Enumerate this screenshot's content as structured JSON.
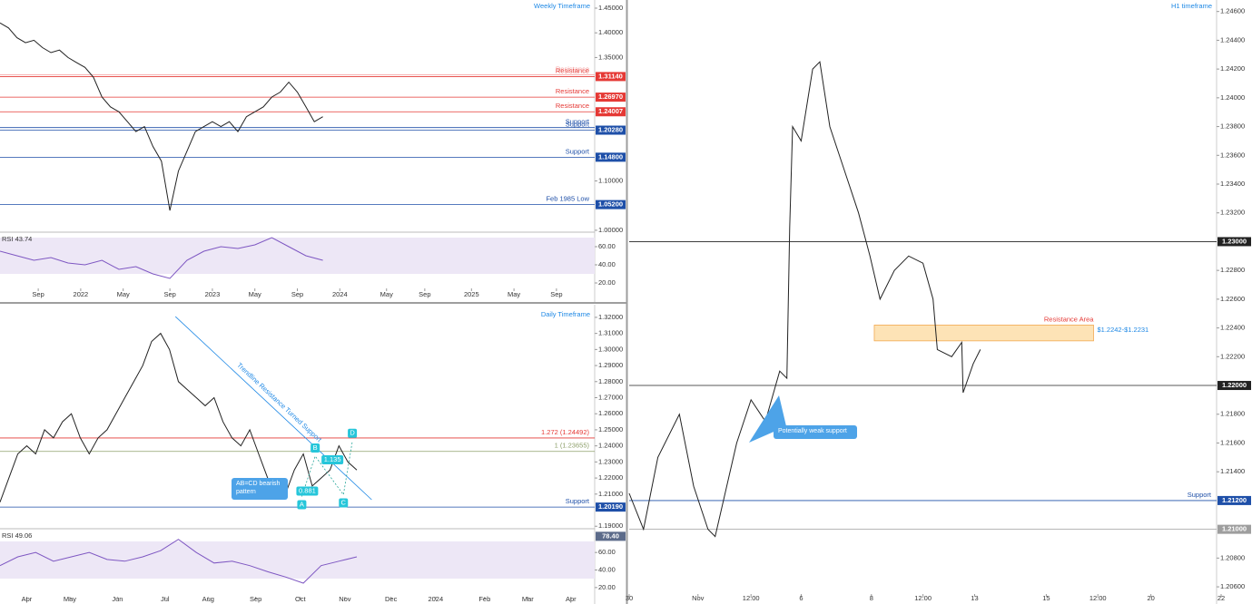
{
  "chart_data": [
    {
      "type": "line",
      "title": "Weekly Timeframe",
      "color": "#222222",
      "x": [
        0,
        2,
        4,
        6,
        8,
        10,
        12,
        14,
        16,
        18,
        20,
        22,
        24,
        26,
        28,
        30,
        32,
        34,
        36,
        38,
        40,
        42,
        44,
        46,
        48,
        50,
        52,
        54,
        56,
        58,
        60,
        62,
        64,
        66,
        68,
        70,
        72,
        74,
        76
      ],
      "values": [
        1.42,
        1.41,
        1.39,
        1.38,
        1.385,
        1.37,
        1.36,
        1.365,
        1.35,
        1.34,
        1.33,
        1.31,
        1.27,
        1.25,
        1.24,
        1.22,
        1.2,
        1.21,
        1.17,
        1.14,
        1.04,
        1.12,
        1.16,
        1.2,
        1.21,
        1.22,
        1.21,
        1.22,
        1.2,
        1.23,
        1.24,
        1.25,
        1.27,
        1.28,
        1.3,
        1.28,
        1.25,
        1.22,
        1.23
      ],
      "xlim": [
        0,
        140
      ],
      "xticks": [
        {
          "value": 9,
          "label": "Sep"
        },
        {
          "value": 19,
          "label": "2022"
        },
        {
          "value": 29,
          "label": "May"
        },
        {
          "value": 40,
          "label": "Sep"
        },
        {
          "value": 50,
          "label": "2023"
        },
        {
          "value": 60,
          "label": "May"
        },
        {
          "value": 70,
          "label": "Sep"
        },
        {
          "value": 80,
          "label": "2024"
        },
        {
          "value": 91,
          "label": "May"
        },
        {
          "value": 100,
          "label": "Sep"
        },
        {
          "value": 111,
          "label": "2025"
        },
        {
          "value": 121,
          "label": "May"
        },
        {
          "value": 131,
          "label": "Sep"
        }
      ],
      "ylim": [
        0.998,
        1.4665
      ],
      "yticks": [
        {
          "value": 1.45,
          "label": "1.45000"
        },
        {
          "value": 1.4,
          "label": "1.40000"
        },
        {
          "value": 1.35,
          "label": "1.35000"
        },
        {
          "value": 1.1,
          "label": "1.10000"
        },
        {
          "value": 1.0,
          "label": "1.00000"
        }
      ],
      "levels": [
        {
          "value": 1.315,
          "name": "Resistance",
          "color": "#f4a6a6"
        },
        {
          "value": 1.3114,
          "name": "Resistance",
          "label": "1.31140",
          "color": "#e53935"
        },
        {
          "value": 1.2697,
          "name": "Resistance",
          "label": "1.26970",
          "color": "#e53935"
        },
        {
          "value": 1.24007,
          "name": "Resistance",
          "label": "1.24007",
          "color": "#e53935"
        },
        {
          "value": 1.208,
          "name": "Support",
          "color": "#1e4fa8"
        },
        {
          "value": 1.2028,
          "name": "Support",
          "label": "1.20280",
          "color": "#1e4fa8"
        },
        {
          "value": 1.148,
          "name": "Support",
          "label": "1.14800",
          "color": "#1e4fa8"
        },
        {
          "value": 1.052,
          "name": "Feb 1985 Low",
          "label": "1.05200",
          "color": "#1e4fa8"
        }
      ],
      "rsi": {
        "title": "RSI 43.74",
        "color": "#7e57c2",
        "x": [
          0,
          4,
          8,
          12,
          16,
          20,
          24,
          28,
          32,
          36,
          40,
          44,
          48,
          52,
          56,
          60,
          64,
          68,
          72,
          76
        ],
        "values": [
          55,
          50,
          45,
          48,
          42,
          40,
          45,
          35,
          38,
          30,
          25,
          45,
          55,
          60,
          58,
          62,
          70,
          60,
          50,
          45
        ],
        "ylim": [
          14,
          74
        ],
        "yticks": [
          {
            "value": 60,
            "label": "60.00"
          },
          {
            "value": 40,
            "label": "40.00"
          },
          {
            "value": 20,
            "label": "20.00"
          }
        ]
      }
    },
    {
      "type": "line",
      "title": "Daily Timeframe",
      "color": "#222222",
      "x": [
        0,
        6,
        12,
        18,
        24,
        30,
        36,
        42,
        48,
        54,
        60,
        66,
        72,
        78,
        84,
        90,
        96,
        102,
        108,
        114,
        120,
        126,
        132,
        138,
        144,
        150,
        156,
        162,
        168,
        174,
        180,
        186,
        192,
        198,
        204,
        210,
        216,
        222,
        228,
        234,
        240
      ],
      "values": [
        1.205,
        1.22,
        1.235,
        1.24,
        1.235,
        1.25,
        1.245,
        1.255,
        1.26,
        1.245,
        1.235,
        1.245,
        1.25,
        1.26,
        1.27,
        1.28,
        1.29,
        1.305,
        1.31,
        1.3,
        1.28,
        1.275,
        1.27,
        1.265,
        1.27,
        1.255,
        1.245,
        1.24,
        1.25,
        1.235,
        1.22,
        1.215,
        1.21,
        1.225,
        1.235,
        1.215,
        1.22,
        1.225,
        1.24,
        1.23,
        1.225
      ],
      "xlim": [
        0,
        400
      ],
      "xticks": [
        {
          "value": 18,
          "label": "Apr"
        },
        {
          "value": 47,
          "label": "May"
        },
        {
          "value": 79,
          "label": "Jun"
        },
        {
          "value": 111,
          "label": "Jul"
        },
        {
          "value": 140,
          "label": "Aug"
        },
        {
          "value": 172,
          "label": "Sep"
        },
        {
          "value": 202,
          "label": "Oct"
        },
        {
          "value": 232,
          "label": "Nov"
        },
        {
          "value": 263,
          "label": "Dec"
        },
        {
          "value": 293,
          "label": "2024"
        },
        {
          "value": 326,
          "label": "Feb"
        },
        {
          "value": 355,
          "label": "Mar"
        },
        {
          "value": 384,
          "label": "Apr"
        }
      ],
      "ylim": [
        1.189,
        1.3256
      ],
      "yticks": [
        {
          "value": 1.32,
          "label": "1.32000"
        },
        {
          "value": 1.31,
          "label": "1.31000"
        },
        {
          "value": 1.3,
          "label": "1.30000"
        },
        {
          "value": 1.29,
          "label": "1.29000"
        },
        {
          "value": 1.28,
          "label": "1.28000"
        },
        {
          "value": 1.27,
          "label": "1.27000"
        },
        {
          "value": 1.26,
          "label": "1.26000"
        },
        {
          "value": 1.25,
          "label": "1.25000"
        },
        {
          "value": 1.24,
          "label": "1.24000"
        },
        {
          "value": 1.23,
          "label": "1.23000"
        },
        {
          "value": 1.22,
          "label": "1.22000"
        },
        {
          "value": 1.21,
          "label": "1.21000"
        },
        {
          "value": 1.19,
          "label": "1.19000"
        }
      ],
      "levels": [
        {
          "value": 1.24492,
          "name": "1.272 (1.24492)",
          "color": "#e53935"
        },
        {
          "value": 1.23655,
          "name": "1 (1.23655)",
          "color": "#8d9f6a"
        },
        {
          "value": 1.2019,
          "name": "Support",
          "label": "1.20190",
          "color": "#1e4fa8"
        }
      ],
      "trendline": {
        "label": "Trendline Resistance Turned Support",
        "x": [
          118,
          250
        ],
        "values": [
          1.3205,
          1.2065
        ]
      },
      "pattern": [
        {
          "label": "A",
          "x": 203,
          "value": 1.2085
        },
        {
          "label": "B",
          "x": 212,
          "value": 1.2336
        },
        {
          "label": "C",
          "x": 231,
          "value": 1.2096
        },
        {
          "label": "D",
          "x": 237,
          "value": 1.2428
        }
      ],
      "ratios": [
        1.135,
        0.881
      ],
      "callout": "AB=CD bearish pattern",
      "rsi": {
        "title": "RSI 49.06",
        "color": "#7e57c2",
        "x": [
          0,
          12,
          24,
          36,
          48,
          60,
          72,
          84,
          96,
          108,
          120,
          132,
          144,
          156,
          168,
          180,
          192,
          204,
          216,
          228,
          240
        ],
        "values": [
          45,
          55,
          60,
          50,
          55,
          60,
          52,
          50,
          55,
          62,
          75,
          60,
          48,
          50,
          45,
          38,
          32,
          25,
          45,
          50,
          55
        ],
        "ylim": [
          9.5,
          85
        ],
        "yticks": [
          {
            "value": 60,
            "label": "60.00"
          },
          {
            "value": 40,
            "label": "40.00"
          },
          {
            "value": 20,
            "label": "20.00"
          }
        ],
        "levels": [
          {
            "value": 78.4,
            "label": "78.40",
            "color": "#5c6b8a"
          }
        ]
      }
    },
    {
      "type": "line",
      "title": "H1 timeframe",
      "color": "#222222",
      "x": [
        0,
        10,
        20,
        35,
        45,
        55,
        60,
        75,
        85,
        95,
        105,
        110,
        112,
        114,
        120,
        128,
        133,
        140,
        150,
        160,
        168,
        175,
        185,
        195,
        205,
        212,
        215,
        225,
        232,
        233,
        240,
        245
      ],
      "values": [
        1.2125,
        1.21,
        1.215,
        1.218,
        1.213,
        1.21,
        1.2095,
        1.216,
        1.219,
        1.2175,
        1.221,
        1.2205,
        1.231,
        1.238,
        1.237,
        1.242,
        1.2425,
        1.238,
        1.235,
        1.232,
        1.229,
        1.226,
        1.228,
        1.229,
        1.2285,
        1.226,
        1.2225,
        1.222,
        1.223,
        1.2195,
        1.2215,
        1.2225
      ],
      "xlim": [
        0,
        413
      ],
      "xticks": [
        {
          "value": 0,
          "label": "30"
        },
        {
          "value": 48,
          "label": "Nov"
        },
        {
          "value": 85,
          "label": "12:00"
        },
        {
          "value": 120,
          "label": "6"
        },
        {
          "value": 169,
          "label": "8"
        },
        {
          "value": 205,
          "label": "12:00"
        },
        {
          "value": 241,
          "label": "13"
        },
        {
          "value": 291,
          "label": "15"
        },
        {
          "value": 327,
          "label": "12:00"
        },
        {
          "value": 364,
          "label": "20"
        },
        {
          "value": 413,
          "label": "22"
        }
      ],
      "ylim": [
        1.2055,
        1.2468
      ],
      "yticks": [
        {
          "value": 1.246,
          "label": "1.24600"
        },
        {
          "value": 1.244,
          "label": "1.24400"
        },
        {
          "value": 1.242,
          "label": "1.24200"
        },
        {
          "value": 1.24,
          "label": "1.24000"
        },
        {
          "value": 1.238,
          "label": "1.23800"
        },
        {
          "value": 1.236,
          "label": "1.23600"
        },
        {
          "value": 1.234,
          "label": "1.23400"
        },
        {
          "value": 1.232,
          "label": "1.23200"
        },
        {
          "value": 1.228,
          "label": "1.22800"
        },
        {
          "value": 1.226,
          "label": "1.22600"
        },
        {
          "value": 1.224,
          "label": "1.22400"
        },
        {
          "value": 1.222,
          "label": "1.22200"
        },
        {
          "value": 1.218,
          "label": "1.21800"
        },
        {
          "value": 1.216,
          "label": "1.21600"
        },
        {
          "value": 1.214,
          "label": "1.21400"
        },
        {
          "value": 1.208,
          "label": "1.20800"
        },
        {
          "value": 1.206,
          "label": "1.20600"
        }
      ],
      "levels": [
        {
          "value": 1.23,
          "label": "1.23000",
          "color": "#222222"
        },
        {
          "value": 1.22,
          "label": "1.22000",
          "color": "#222222"
        },
        {
          "value": 1.212,
          "name": "Support",
          "label": "1.21200",
          "color": "#1e4fa8"
        },
        {
          "value": 1.21,
          "label": "1.21000",
          "color": "#9e9e9e"
        }
      ],
      "zone": {
        "label": "Resistance Area",
        "range_label": "$1.2242-$1.2231",
        "values": [
          1.2242,
          1.2231
        ],
        "x": [
          171,
          324
        ]
      },
      "callout": "Potentially weak support"
    }
  ]
}
